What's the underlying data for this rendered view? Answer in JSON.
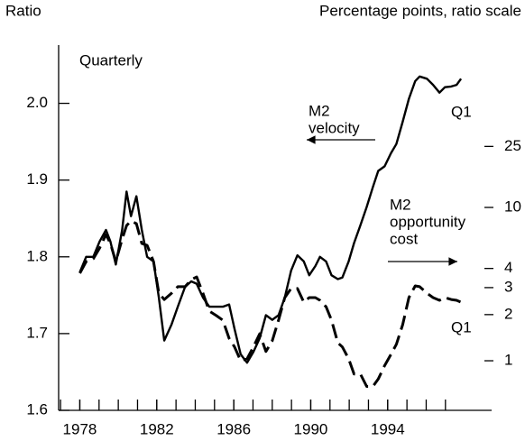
{
  "chart_data": {
    "type": "line",
    "title": "Quarterly",
    "y_label": "Ratio",
    "y2_label": "Percentage points, ratio scale",
    "annotations": [
      {
        "lines": [
          "M2",
          "velocity"
        ]
      },
      {
        "lines": [
          "M2",
          "opportunity",
          "cost"
        ]
      },
      {
        "text": "Q1"
      },
      {
        "text": "Q1"
      }
    ],
    "xlim": [
      1976.9,
      1999.4
    ],
    "xticks": [
      1978,
      1982,
      1986,
      1990,
      1994
    ],
    "xticks_minor": [
      1977,
      1978,
      1979,
      1980,
      1981,
      1982,
      1983,
      1984,
      1985,
      1986,
      1987,
      1988,
      1989,
      1990,
      1991,
      1992,
      1993,
      1994,
      1995,
      1996,
      1997
    ],
    "ylim": [
      1.6,
      2.07
    ],
    "yticks": [
      1.6,
      1.7,
      1.8,
      1.9,
      {
        "value": 2,
        "label": "2.0"
      }
    ],
    "y2lim": [
      0.475,
      107
    ],
    "y2ticks": [
      1,
      2,
      3,
      4,
      10,
      25
    ],
    "y2_log": true,
    "series": [
      {
        "name": "M2 velocity",
        "color": "#000000",
        "dash": false,
        "x": [
          1978.0,
          1978.33,
          1978.7,
          1979.03,
          1979.36,
          1979.59,
          1979.87,
          1980.2,
          1980.43,
          1980.66,
          1980.94,
          1981.22,
          1981.5,
          1981.83,
          1982.11,
          1982.39,
          1982.77,
          1983.09,
          1983.47,
          1983.79,
          1984.07,
          1984.4,
          1984.73,
          1985.1,
          1985.43,
          1985.76,
          1986.04,
          1986.36,
          1986.69,
          1987.02,
          1987.35,
          1987.67,
          1988.0,
          1988.33,
          1988.65,
          1988.98,
          1989.31,
          1989.64,
          1989.92,
          1990.24,
          1990.48,
          1990.8,
          1991.08,
          1991.41,
          1991.64,
          1991.97,
          1992.25,
          1992.58,
          1992.91,
          1993.23,
          1993.51,
          1993.84,
          1994.17,
          1994.45,
          1994.78,
          1995.1,
          1995.43,
          1995.66,
          1996.04,
          1996.36,
          1996.69,
          1996.97,
          1997.3,
          1997.58,
          1997.81
        ],
        "values": [
          1.78,
          1.8,
          1.8,
          1.82,
          1.835,
          1.82,
          1.79,
          1.835,
          1.885,
          1.853,
          1.879,
          1.835,
          1.8,
          1.794,
          1.747,
          1.691,
          1.712,
          1.735,
          1.761,
          1.768,
          1.765,
          1.747,
          1.735,
          1.735,
          1.735,
          1.738,
          1.706,
          1.673,
          1.662,
          1.676,
          1.694,
          1.724,
          1.718,
          1.724,
          1.747,
          1.782,
          1.802,
          1.794,
          1.776,
          1.788,
          1.8,
          1.794,
          1.776,
          1.771,
          1.773,
          1.794,
          1.818,
          1.841,
          1.865,
          1.891,
          1.912,
          1.918,
          1.935,
          1.947,
          1.976,
          2.006,
          2.029,
          2.035,
          2.032,
          2.024,
          2.014,
          2.021,
          2.022,
          2.024,
          2.032
        ]
      },
      {
        "name": "M2 opportunity cost",
        "color": "#000000",
        "dash": true,
        "axis": "y2",
        "x": [
          1978.0,
          1978.33,
          1978.7,
          1979.03,
          1979.36,
          1979.59,
          1979.87,
          1980.2,
          1980.43,
          1980.66,
          1980.94,
          1981.22,
          1981.5,
          1981.83,
          1982.11,
          1982.39,
          1982.77,
          1983.09,
          1983.47,
          1983.79,
          1984.07,
          1984.4,
          1984.73,
          1985.1,
          1985.43,
          1985.76,
          1986.04,
          1986.36,
          1986.69,
          1987.02,
          1987.35,
          1987.67,
          1988.0,
          1988.33,
          1988.65,
          1988.98,
          1989.31,
          1989.64,
          1989.92,
          1990.24,
          1990.48,
          1990.8,
          1991.08,
          1991.41,
          1991.64,
          1991.97,
          1992.25,
          1992.58,
          1992.91,
          1993.23,
          1993.51,
          1993.84,
          1994.17,
          1994.45,
          1994.78,
          1995.1,
          1995.43,
          1995.66,
          1996.04,
          1996.36,
          1996.69,
          1996.97,
          1997.3,
          1997.58,
          1997.81
        ],
        "values": [
          3.72,
          4.44,
          4.62,
          5.43,
          6.66,
          5.82,
          4.44,
          6.22,
          7.62,
          8.16,
          7.84,
          5.82,
          5.66,
          4.44,
          2.76,
          2.51,
          2.76,
          3.04,
          3.04,
          3.38,
          3.52,
          2.76,
          2.11,
          1.97,
          1.84,
          1.4,
          1.23,
          1.0,
          1.03,
          1.23,
          1.5,
          1.15,
          1.35,
          1.84,
          2.58,
          2.96,
          2.96,
          2.41,
          2.58,
          2.58,
          2.48,
          2.25,
          1.84,
          1.31,
          1.23,
          1.03,
          0.82,
          0.82,
          0.68,
          0.68,
          0.76,
          0.93,
          1.1,
          1.28,
          1.72,
          2.58,
          3.08,
          3.04,
          2.76,
          2.58,
          2.48,
          2.58,
          2.51,
          2.48,
          2.41
        ]
      }
    ]
  }
}
